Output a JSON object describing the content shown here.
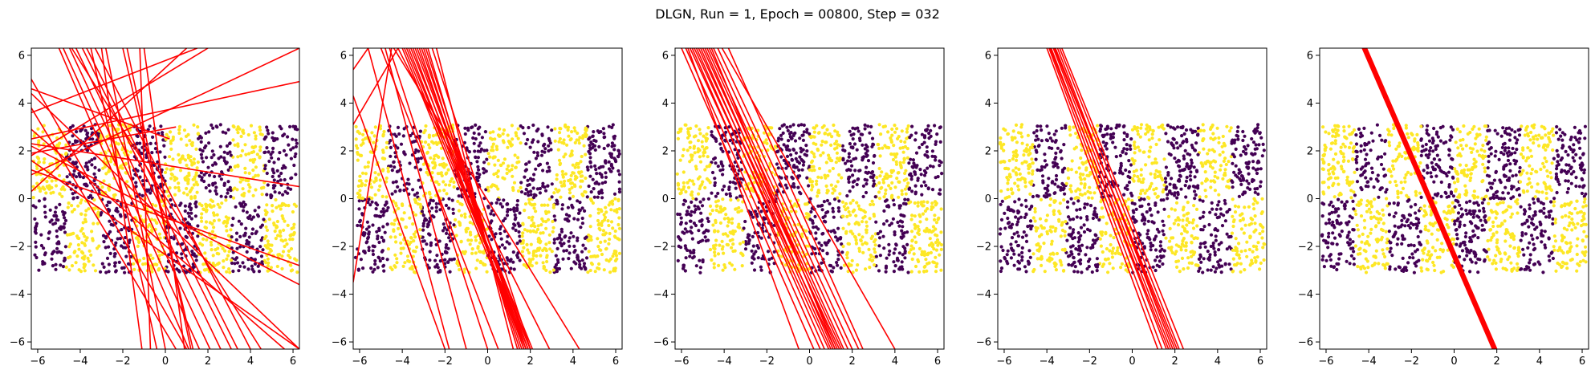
{
  "figure": {
    "suptitle": "DLGN, Run = 1, Epoch = 00800, Step = 032"
  },
  "colors": {
    "class_a": "#440154",
    "class_b": "#fde725",
    "line": "#ff0000",
    "axes": "#000000"
  },
  "chart_data": [
    {
      "type": "scatter",
      "title": "",
      "xlabel": "",
      "ylabel": "",
      "xlim": [
        -6.3,
        6.3
      ],
      "ylim": [
        -6.3,
        6.3
      ],
      "xticks": [
        -6,
        -4,
        -2,
        0,
        2,
        4,
        6
      ],
      "yticks": [
        -6,
        -4,
        -2,
        0,
        2,
        4,
        6
      ],
      "grid": false,
      "points": {
        "x_range": [
          -6.2,
          6.2
        ],
        "y_range": [
          -3.1,
          3.1
        ],
        "stripe_width": 1.55,
        "upper_first_stripe_class": "yellow",
        "lower_first_stripe_class": "purple"
      },
      "lines": [
        [
          [
            -6.3,
            5.0
          ],
          [
            1.0,
            -6.3
          ]
        ],
        [
          [
            -6.3,
            3.8
          ],
          [
            0.5,
            -6.3
          ]
        ],
        [
          [
            -6.3,
            4.4
          ],
          [
            6.3,
            -6.3
          ]
        ],
        [
          [
            -6.3,
            2.9
          ],
          [
            5.6,
            -6.3
          ]
        ],
        [
          [
            -6.3,
            1.6
          ],
          [
            6.3,
            -6.3
          ]
        ],
        [
          [
            -6.3,
            0.3
          ],
          [
            1.0,
            6.3
          ]
        ],
        [
          [
            -6.3,
            1.8
          ],
          [
            2.0,
            6.3
          ]
        ],
        [
          [
            -6.3,
            2.2
          ],
          [
            6.3,
            -3.6
          ]
        ],
        [
          [
            -6.3,
            1.2
          ],
          [
            6.3,
            -2.8
          ]
        ],
        [
          [
            -6.3,
            2.5
          ],
          [
            6.3,
            4.9
          ]
        ],
        [
          [
            -6.3,
            3.6
          ],
          [
            1.5,
            6.3
          ]
        ],
        [
          [
            -6.3,
            1.0
          ],
          [
            6.3,
            6.3
          ]
        ],
        [
          [
            -5.0,
            6.3
          ],
          [
            1.1,
            -6.3
          ]
        ],
        [
          [
            -4.8,
            6.3
          ],
          [
            1.6,
            -6.3
          ]
        ],
        [
          [
            -4.5,
            6.3
          ],
          [
            2.1,
            -6.3
          ]
        ],
        [
          [
            -4.2,
            6.3
          ],
          [
            2.6,
            -6.3
          ]
        ],
        [
          [
            -3.9,
            6.3
          ],
          [
            3.1,
            -6.3
          ]
        ],
        [
          [
            -3.7,
            6.3
          ],
          [
            3.4,
            -6.3
          ]
        ],
        [
          [
            -3.3,
            6.3
          ],
          [
            4.0,
            -6.3
          ]
        ],
        [
          [
            -2.8,
            6.3
          ],
          [
            0.0,
            -6.3
          ]
        ],
        [
          [
            -2.0,
            6.3
          ],
          [
            1.3,
            -6.3
          ]
        ],
        [
          [
            -3.5,
            6.3
          ],
          [
            -0.4,
            -6.3
          ]
        ],
        [
          [
            -1.8,
            6.3
          ],
          [
            1.2,
            -6.3
          ]
        ],
        [
          [
            -1.0,
            6.3
          ],
          [
            0.9,
            -6.3
          ]
        ],
        [
          [
            -3.0,
            6.3
          ],
          [
            -1.1,
            -6.3
          ]
        ],
        [
          [
            -1.2,
            6.3
          ],
          [
            -0.7,
            -6.3
          ]
        ],
        [
          [
            -6.3,
            2.3
          ],
          [
            6.3,
            0.5
          ]
        ],
        [
          [
            -6.3,
            1.9
          ],
          [
            0.5,
            3.0
          ]
        ],
        [
          [
            -6.3,
            4.6
          ],
          [
            0.2,
            2.5
          ]
        ],
        [
          [
            -4.4,
            6.3
          ],
          [
            4.5,
            -6.3
          ]
        ]
      ]
    },
    {
      "type": "scatter",
      "title": "",
      "xlabel": "",
      "ylabel": "",
      "xlim": [
        -6.3,
        6.3
      ],
      "ylim": [
        -6.3,
        6.3
      ],
      "xticks": [
        -6,
        -4,
        -2,
        0,
        2,
        4,
        6
      ],
      "yticks": [
        -6,
        -4,
        -2,
        0,
        2,
        4,
        6
      ],
      "grid": false,
      "points": {
        "x_range": [
          -6.2,
          6.2
        ],
        "y_range": [
          -3.1,
          3.1
        ],
        "stripe_width": 1.55,
        "upper_first_stripe_class": "yellow",
        "lower_first_stripe_class": "purple"
      },
      "lines": [
        [
          [
            -5.6,
            6.3
          ],
          [
            -1.8,
            -6.3
          ]
        ],
        [
          [
            -4.8,
            6.3
          ],
          [
            -1.0,
            -6.3
          ]
        ],
        [
          [
            -4.6,
            6.3
          ],
          [
            0.0,
            -6.3
          ]
        ],
        [
          [
            -4.4,
            6.3
          ],
          [
            4.3,
            -6.3
          ]
        ],
        [
          [
            -4.2,
            6.3
          ],
          [
            2.9,
            -6.3
          ]
        ],
        [
          [
            -4.0,
            6.3
          ],
          [
            1.8,
            -6.3
          ]
        ],
        [
          [
            -3.9,
            6.3
          ],
          [
            1.9,
            -6.3
          ]
        ],
        [
          [
            -3.8,
            6.3
          ],
          [
            2.0,
            -6.3
          ]
        ],
        [
          [
            -3.7,
            6.3
          ],
          [
            1.8,
            -6.3
          ]
        ],
        [
          [
            -3.6,
            6.3
          ],
          [
            2.1,
            -6.3
          ]
        ],
        [
          [
            -3.5,
            6.3
          ],
          [
            1.7,
            -6.3
          ]
        ],
        [
          [
            -3.4,
            6.3
          ],
          [
            2.0,
            -6.3
          ]
        ],
        [
          [
            -3.3,
            6.3
          ],
          [
            1.9,
            -6.3
          ]
        ],
        [
          [
            -3.2,
            6.3
          ],
          [
            1.6,
            -6.3
          ]
        ],
        [
          [
            -3.1,
            6.3
          ],
          [
            1.8,
            -6.3
          ]
        ],
        [
          [
            -3.0,
            6.3
          ],
          [
            1.5,
            -6.3
          ]
        ],
        [
          [
            -2.9,
            6.3
          ],
          [
            1.7,
            -6.3
          ]
        ],
        [
          [
            -2.8,
            6.3
          ],
          [
            1.4,
            -6.3
          ]
        ],
        [
          [
            -2.6,
            6.3
          ],
          [
            2.0,
            -6.3
          ]
        ],
        [
          [
            -2.4,
            6.3
          ],
          [
            1.2,
            -6.3
          ]
        ],
        [
          [
            -6.3,
            5.4
          ],
          [
            -5.6,
            6.3
          ]
        ],
        [
          [
            -6.3,
            4.3
          ],
          [
            -2.0,
            -6.3
          ]
        ],
        [
          [
            -6.3,
            3.1
          ],
          [
            -4.2,
            6.3
          ]
        ],
        [
          [
            -6.3,
            -3.5
          ],
          [
            -4.5,
            6.3
          ]
        ],
        [
          [
            -5.0,
            6.3
          ],
          [
            0.5,
            -6.3
          ]
        ]
      ]
    },
    {
      "type": "scatter",
      "title": "",
      "xlabel": "",
      "ylabel": "",
      "xlim": [
        -6.3,
        6.3
      ],
      "ylim": [
        -6.3,
        6.3
      ],
      "xticks": [
        -6,
        -4,
        -2,
        0,
        2,
        4,
        6
      ],
      "yticks": [
        -6,
        -4,
        -2,
        0,
        2,
        4,
        6
      ],
      "grid": false,
      "points": {
        "x_range": [
          -6.2,
          6.2
        ],
        "y_range": [
          -3.1,
          3.1
        ],
        "stripe_width": 1.55,
        "upper_first_stripe_class": "yellow",
        "lower_first_stripe_class": "purple"
      },
      "lines": [
        [
          [
            -6.0,
            6.3
          ],
          [
            0.2,
            -6.3
          ]
        ],
        [
          [
            -5.8,
            6.3
          ],
          [
            0.5,
            -6.3
          ]
        ],
        [
          [
            -5.6,
            6.3
          ],
          [
            0.9,
            -6.3
          ]
        ],
        [
          [
            -5.5,
            6.3
          ],
          [
            0.7,
            -6.3
          ]
        ],
        [
          [
            -5.4,
            6.3
          ],
          [
            1.2,
            -6.3
          ]
        ],
        [
          [
            -5.3,
            6.3
          ],
          [
            1.0,
            -6.3
          ]
        ],
        [
          [
            -5.2,
            6.3
          ],
          [
            1.4,
            -6.3
          ]
        ],
        [
          [
            -5.1,
            6.3
          ],
          [
            1.1,
            -6.3
          ]
        ],
        [
          [
            -5.0,
            6.3
          ],
          [
            1.5,
            -6.3
          ]
        ],
        [
          [
            -4.9,
            6.3
          ],
          [
            1.3,
            -6.3
          ]
        ],
        [
          [
            -4.8,
            6.3
          ],
          [
            1.6,
            -6.3
          ]
        ],
        [
          [
            -4.7,
            6.3
          ],
          [
            1.8,
            -6.3
          ]
        ],
        [
          [
            -4.6,
            6.3
          ],
          [
            1.2,
            -6.3
          ]
        ],
        [
          [
            -4.5,
            6.3
          ],
          [
            2.0,
            -6.3
          ]
        ],
        [
          [
            -4.3,
            6.3
          ],
          [
            2.3,
            -6.3
          ]
        ],
        [
          [
            -4.1,
            6.3
          ],
          [
            4.0,
            -6.3
          ]
        ],
        [
          [
            -5.7,
            6.3
          ],
          [
            -0.5,
            -6.3
          ]
        ],
        [
          [
            -3.8,
            6.3
          ],
          [
            2.5,
            -6.3
          ]
        ]
      ]
    },
    {
      "type": "scatter",
      "title": "",
      "xlabel": "",
      "ylabel": "",
      "xlim": [
        -6.3,
        6.3
      ],
      "ylim": [
        -6.3,
        6.3
      ],
      "xticks": [
        -6,
        -4,
        -2,
        0,
        2,
        4,
        6
      ],
      "yticks": [
        -6,
        -4,
        -2,
        0,
        2,
        4,
        6
      ],
      "grid": false,
      "points": {
        "x_range": [
          -6.2,
          6.2
        ],
        "y_range": [
          -3.1,
          3.1
        ],
        "stripe_width": 1.55,
        "upper_first_stripe_class": "yellow",
        "lower_first_stripe_class": "purple"
      },
      "lines": [
        [
          [
            -4.0,
            6.3
          ],
          [
            1.2,
            -6.3
          ]
        ],
        [
          [
            -3.9,
            6.3
          ],
          [
            1.4,
            -6.3
          ]
        ],
        [
          [
            -3.8,
            6.3
          ],
          [
            1.6,
            -6.3
          ]
        ],
        [
          [
            -3.7,
            6.3
          ],
          [
            1.8,
            -6.3
          ]
        ],
        [
          [
            -3.6,
            6.3
          ],
          [
            2.0,
            -6.3
          ]
        ],
        [
          [
            -3.5,
            6.3
          ],
          [
            1.9,
            -6.3
          ]
        ],
        [
          [
            -3.4,
            6.3
          ],
          [
            2.2,
            -6.3
          ]
        ],
        [
          [
            -3.3,
            6.3
          ],
          [
            2.4,
            -6.3
          ]
        ],
        [
          [
            -3.85,
            6.3
          ],
          [
            1.7,
            -6.3
          ]
        ],
        [
          [
            -3.65,
            6.3
          ],
          [
            2.1,
            -6.3
          ]
        ]
      ]
    },
    {
      "type": "scatter",
      "title": "",
      "xlabel": "",
      "ylabel": "",
      "xlim": [
        -6.3,
        6.3
      ],
      "ylim": [
        -6.3,
        6.3
      ],
      "xticks": [
        -6,
        -4,
        -2,
        0,
        2,
        4,
        6
      ],
      "yticks": [
        -6,
        -4,
        -2,
        0,
        2,
        4,
        6
      ],
      "grid": false,
      "points": {
        "x_range": [
          -6.2,
          6.2
        ],
        "y_range": [
          -3.1,
          3.1
        ],
        "stripe_width": 1.55,
        "upper_first_stripe_class": "yellow",
        "lower_first_stripe_class": "purple"
      },
      "lines": [
        [
          [
            -4.3,
            6.3
          ],
          [
            1.8,
            -6.3
          ]
        ],
        [
          [
            -4.25,
            6.3
          ],
          [
            1.85,
            -6.3
          ]
        ],
        [
          [
            -4.2,
            6.3
          ],
          [
            1.9,
            -6.3
          ]
        ],
        [
          [
            -4.15,
            6.3
          ],
          [
            1.95,
            -6.3
          ]
        ],
        [
          [
            -4.1,
            6.3
          ],
          [
            2.0,
            -6.3
          ]
        ]
      ]
    }
  ]
}
